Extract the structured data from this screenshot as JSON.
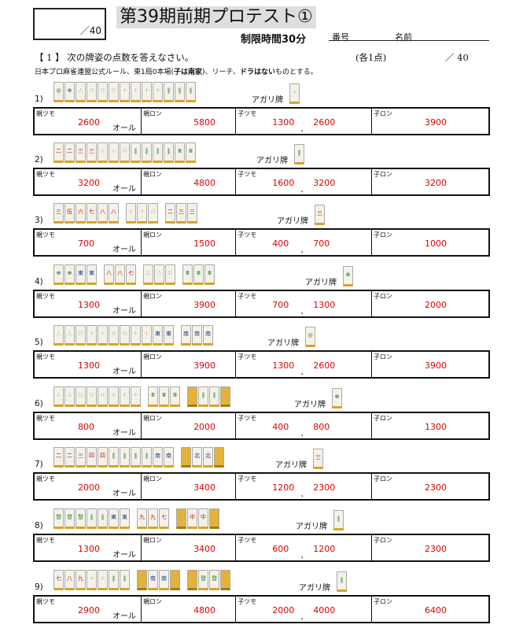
{
  "header": {
    "score_total": "／40",
    "title": "第39期前期プロテスト①",
    "time_limit": "制限時間30分",
    "number_label": "番号",
    "name_label": "名前"
  },
  "question": {
    "heading": "【 1 】 次の牌姿の点数を答えなさい。",
    "points_each": "(各1点)",
    "points_total": "／ 40",
    "rules_a": "日本プロ麻雀連盟公式ルール、東1局0本場(",
    "rules_b": "子は南家",
    "rules_c": ")、リーチ、",
    "rules_d": "ドラはない",
    "rules_e": "ものとする。"
  },
  "common": {
    "agari_label": "アガリ牌",
    "oya_tsumo": "親ツモ",
    "oya_ron": "親ロン",
    "ko_tsumo": "子ツモ",
    "ko_ron": "子ロン",
    "all_label": "オール",
    "separator": "、"
  },
  "problems": [
    {
      "no": "1)",
      "hand": [
        {
          "k": "p",
          "t": "◎"
        },
        {
          "k": "p",
          "t": "⊕"
        },
        {
          "k": "p",
          "t": "∴"
        },
        {
          "k": "p",
          "t": "∷"
        },
        {
          "k": "p",
          "t": "∷"
        },
        {
          "k": "p",
          "t": "∷"
        },
        {
          "k": "m",
          "t": "⁘"
        },
        {
          "k": "m",
          "t": "⁘"
        },
        {
          "k": "p",
          "t": "⁘"
        },
        {
          "k": "p",
          "t": "⁘"
        },
        {
          "k": "s",
          "t": "‖"
        },
        {
          "k": "s",
          "t": "‖"
        },
        {
          "k": "s",
          "t": "‖"
        }
      ],
      "agari": {
        "k": "p",
        "t": "⁘"
      },
      "oya_tsumo": "2600",
      "oya_ron": "5800",
      "ko_tsumo_ko": "1300",
      "ko_tsumo_oya": "2600",
      "ko_ron": "3900"
    },
    {
      "no": "2)",
      "hand": [
        {
          "k": "m",
          "t": "二"
        },
        {
          "k": "m",
          "t": "二"
        },
        {
          "k": "m",
          "t": "三"
        },
        {
          "k": "m",
          "t": "三"
        },
        {
          "k": "p",
          "t": "∴"
        },
        {
          "k": "p",
          "t": "∴"
        },
        {
          "k": "p",
          "t": "∷"
        },
        {
          "k": "s",
          "t": "‖"
        },
        {
          "k": "s",
          "t": "‖"
        },
        {
          "k": "s",
          "t": "‖"
        },
        {
          "k": "s",
          "t": "‖"
        },
        {
          "k": "s",
          "t": "Ⅲ"
        },
        {
          "k": "s",
          "t": "Ⅲ"
        }
      ],
      "agari": {
        "k": "s",
        "t": "‖"
      },
      "oya_tsumo": "3200",
      "oya_ron": "4800",
      "ko_tsumo_ko": "1600",
      "ko_tsumo_oya": "3200",
      "ko_ron": "3200"
    },
    {
      "no": "3)",
      "hand": [
        {
          "k": "m",
          "t": "三"
        },
        {
          "k": "m",
          "t": "伍"
        },
        {
          "k": "m",
          "t": "六"
        },
        {
          "k": "m",
          "t": "七"
        },
        {
          "k": "m",
          "t": "八"
        },
        {
          "k": "m",
          "t": "八"
        },
        {
          "k": "gap"
        },
        {
          "k": "p",
          "t": "⁘"
        },
        {
          "k": "p",
          "t": "⁘"
        },
        {
          "k": "p",
          "t": "∷"
        },
        {
          "k": "gap"
        },
        {
          "k": "m",
          "t": "二"
        },
        {
          "k": "m",
          "t": "三"
        },
        {
          "k": "m",
          "t": "三"
        }
      ],
      "agari": {
        "k": "m",
        "t": "三"
      },
      "oya_tsumo": "700",
      "oya_ron": "1500",
      "ko_tsumo_ko": "400",
      "ko_tsumo_oya": "700",
      "ko_ron": "1000"
    },
    {
      "no": "4)",
      "hand": [
        {
          "k": "p",
          "t": "⊕"
        },
        {
          "k": "p",
          "t": "⊕"
        },
        {
          "k": "h",
          "t": "東"
        },
        {
          "k": "h",
          "t": "東"
        },
        {
          "k": "gap"
        },
        {
          "k": "m",
          "t": "八"
        },
        {
          "k": "m",
          "t": "八"
        },
        {
          "k": "m",
          "t": "七"
        },
        {
          "k": "gap"
        },
        {
          "k": "p",
          "t": "∴"
        },
        {
          "k": "p",
          "t": "∴"
        },
        {
          "k": "p",
          "t": "∷"
        },
        {
          "k": "gap"
        },
        {
          "k": "s",
          "t": "Ⅲ"
        },
        {
          "k": "s",
          "t": "Ⅲ"
        },
        {
          "k": "s",
          "t": "Ⅲ"
        }
      ],
      "agari": {
        "k": "p",
        "t": "⊕"
      },
      "oya_tsumo": "1300",
      "oya_ron": "3900",
      "ko_tsumo_ko": "700",
      "ko_tsumo_oya": "1300",
      "ko_ron": "2000"
    },
    {
      "no": "5)",
      "hand": [
        {
          "k": "p",
          "t": "∴"
        },
        {
          "k": "p",
          "t": "∴"
        },
        {
          "k": "p",
          "t": "∷"
        },
        {
          "k": "m",
          "t": "⁘"
        },
        {
          "k": "m",
          "t": "⁘"
        },
        {
          "k": "p",
          "t": "∷"
        },
        {
          "k": "p",
          "t": "∷"
        },
        {
          "k": "m",
          "t": "⁘"
        },
        {
          "k": "m",
          "t": "⁘"
        },
        {
          "k": "h",
          "t": "東"
        },
        {
          "k": "h",
          "t": "東"
        },
        {
          "k": "gap"
        },
        {
          "k": "h",
          "t": "南"
        },
        {
          "k": "h",
          "t": "南"
        },
        {
          "k": "h",
          "t": "南"
        }
      ],
      "agari": {
        "k": "p",
        "t": "◎"
      },
      "oya_tsumo": "1300",
      "oya_ron": "3900",
      "ko_tsumo_ko": "1300",
      "ko_tsumo_oya": "2600",
      "ko_ron": "3900"
    },
    {
      "no": "6)",
      "hand": [
        {
          "k": "p",
          "t": "∴"
        },
        {
          "k": "p",
          "t": "∴"
        },
        {
          "k": "p",
          "t": "∷"
        },
        {
          "k": "p",
          "t": "∷"
        },
        {
          "k": "p",
          "t": "∷"
        },
        {
          "k": "p",
          "t": "⁘"
        },
        {
          "k": "p",
          "t": "⁘"
        },
        {
          "k": "p",
          "t": "⁘"
        },
        {
          "k": "gap"
        },
        {
          "k": "s",
          "t": "Ⅲ"
        },
        {
          "k": "s",
          "t": "Ⅲ"
        },
        {
          "k": "s",
          "t": "Ⅲ"
        },
        {
          "k": "gap"
        },
        {
          "k": "back",
          "t": ""
        },
        {
          "k": "s",
          "t": "‖"
        },
        {
          "k": "s",
          "t": "‖"
        },
        {
          "k": "back",
          "t": ""
        }
      ],
      "agari": {
        "k": "p",
        "t": "⊕"
      },
      "oya_tsumo": "800",
      "oya_ron": "2000",
      "ko_tsumo_ko": "400",
      "ko_tsumo_oya": "800",
      "ko_ron": "1300"
    },
    {
      "no": "7)",
      "hand": [
        {
          "k": "m",
          "t": "二"
        },
        {
          "k": "m",
          "t": "二"
        },
        {
          "k": "m",
          "t": "三"
        },
        {
          "k": "m",
          "t": "四"
        },
        {
          "k": "m",
          "t": "四"
        },
        {
          "k": "s",
          "t": "‖"
        },
        {
          "k": "s",
          "t": "‖"
        },
        {
          "k": "s",
          "t": "‖"
        },
        {
          "k": "s",
          "t": "‖"
        },
        {
          "k": "h",
          "t": "南"
        },
        {
          "k": "h",
          "t": "南"
        },
        {
          "k": "gap"
        },
        {
          "k": "back",
          "t": ""
        },
        {
          "k": "h",
          "t": "北"
        },
        {
          "k": "h",
          "t": "北"
        },
        {
          "k": "back",
          "t": ""
        }
      ],
      "agari": {
        "k": "m",
        "t": "三"
      },
      "oya_tsumo": "2000",
      "oya_ron": "3400",
      "ko_tsumo_ko": "1200",
      "ko_tsumo_oya": "2300",
      "ko_ron": "2300"
    },
    {
      "no": "8)",
      "hand": [
        {
          "k": "s",
          "t": "發"
        },
        {
          "k": "s",
          "t": "發"
        },
        {
          "k": "s",
          "t": "發"
        },
        {
          "k": "s",
          "t": "‖"
        },
        {
          "k": "s",
          "t": "‖"
        },
        {
          "k": "h",
          "t": "東"
        },
        {
          "k": "h",
          "t": "東"
        },
        {
          "k": "gap"
        },
        {
          "k": "m",
          "t": "九"
        },
        {
          "k": "m",
          "t": "九"
        },
        {
          "k": "m",
          "t": "七"
        },
        {
          "k": "gap"
        },
        {
          "k": "back",
          "t": ""
        },
        {
          "k": "m",
          "t": "中"
        },
        {
          "k": "m",
          "t": "中"
        },
        {
          "k": "back",
          "t": ""
        }
      ],
      "agari": {
        "k": "s",
        "t": "‖"
      },
      "oya_tsumo": "1300",
      "oya_ron": "3400",
      "ko_tsumo_ko": "600",
      "ko_tsumo_oya": "1200",
      "ko_ron": "2300"
    },
    {
      "no": "9)",
      "hand": [
        {
          "k": "m",
          "t": "七"
        },
        {
          "k": "m",
          "t": "八"
        },
        {
          "k": "m",
          "t": "九"
        },
        {
          "k": "p",
          "t": "⁘"
        },
        {
          "k": "p",
          "t": "⁘"
        },
        {
          "k": "s",
          "t": "‖"
        },
        {
          "k": "s",
          "t": "‖"
        },
        {
          "k": "gap"
        },
        {
          "k": "back",
          "t": ""
        },
        {
          "k": "h",
          "t": "南"
        },
        {
          "k": "h",
          "t": "南"
        },
        {
          "k": "back",
          "t": ""
        },
        {
          "k": "gap"
        },
        {
          "k": "back",
          "t": ""
        },
        {
          "k": "s",
          "t": "發"
        },
        {
          "k": "s",
          "t": "發"
        },
        {
          "k": "back",
          "t": ""
        }
      ],
      "agari": {
        "k": "s",
        "t": "‖"
      },
      "oya_tsumo": "2900",
      "oya_ron": "4800",
      "ko_tsumo_ko": "2000",
      "ko_tsumo_oya": "4000",
      "ko_ron": "6400"
    }
  ]
}
